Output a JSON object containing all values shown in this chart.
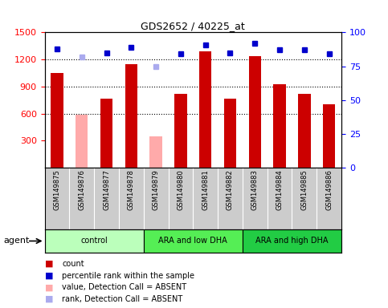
{
  "title": "GDS2652 / 40225_at",
  "samples": [
    "GSM149875",
    "GSM149876",
    "GSM149877",
    "GSM149878",
    "GSM149879",
    "GSM149880",
    "GSM149881",
    "GSM149882",
    "GSM149883",
    "GSM149884",
    "GSM149885",
    "GSM149886"
  ],
  "counts": [
    1050,
    null,
    770,
    1150,
    null,
    820,
    1290,
    770,
    1240,
    930,
    820,
    700
  ],
  "absent_values": [
    null,
    590,
    null,
    null,
    350,
    null,
    null,
    null,
    null,
    null,
    null,
    null
  ],
  "percentile_ranks": [
    88,
    null,
    85,
    89,
    null,
    84,
    91,
    85,
    92,
    87,
    87,
    84
  ],
  "absent_ranks": [
    null,
    82,
    null,
    null,
    75,
    null,
    null,
    null,
    null,
    null,
    null,
    null
  ],
  "ylim_left": [
    0,
    1500
  ],
  "ylim_right": [
    0,
    100
  ],
  "yticks_left": [
    300,
    600,
    900,
    1200,
    1500
  ],
  "yticks_right": [
    0,
    25,
    50,
    75,
    100
  ],
  "groups": [
    {
      "label": "control",
      "start": 0,
      "end": 4,
      "color": "#bbffbb"
    },
    {
      "label": "ARA and low DHA",
      "start": 4,
      "end": 8,
      "color": "#55ee55"
    },
    {
      "label": "ARA and high DHA",
      "start": 8,
      "end": 12,
      "color": "#22cc44"
    }
  ],
  "bar_color_present": "#cc0000",
  "bar_color_absent": "#ffaaaa",
  "dot_color_present": "#0000cc",
  "dot_color_absent": "#aaaaee",
  "dot_size": 5,
  "bar_width": 0.5,
  "background_color": "#ffffff",
  "label_area_color": "#cccccc",
  "agent_label": "agent",
  "legend_items": [
    {
      "color": "#cc0000",
      "label": "count"
    },
    {
      "color": "#0000cc",
      "label": "percentile rank within the sample"
    },
    {
      "color": "#ffaaaa",
      "label": "value, Detection Call = ABSENT"
    },
    {
      "color": "#aaaaee",
      "label": "rank, Detection Call = ABSENT"
    }
  ]
}
